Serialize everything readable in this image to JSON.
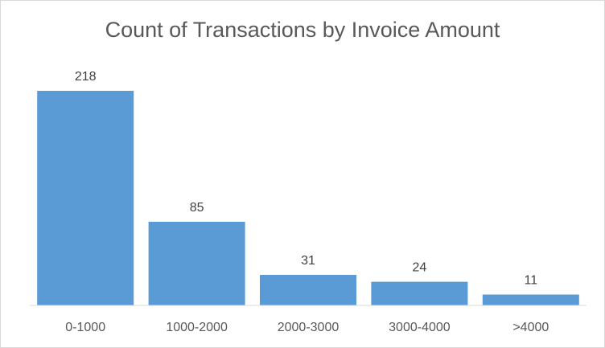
{
  "chart_data": {
    "type": "bar",
    "title": "Count of Transactions by Invoice Amount",
    "categories": [
      "0-1000",
      "1000-2000",
      "2000-3000",
      "3000-4000",
      ">4000"
    ],
    "values": [
      218,
      85,
      31,
      24,
      11
    ],
    "xlabel": "",
    "ylabel": "",
    "ylim": [
      0,
      218
    ],
    "grid": false,
    "legend": "none",
    "bar_color": "#5b9bd5",
    "axis_color": "#d9d9d9"
  }
}
